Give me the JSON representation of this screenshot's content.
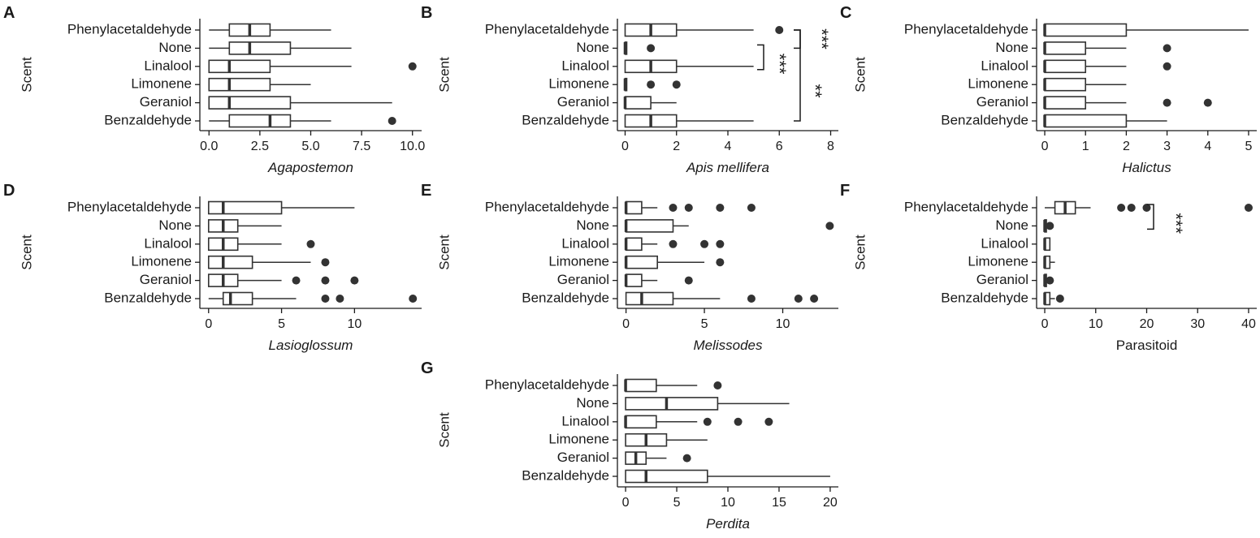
{
  "colors": {
    "box_fill": "#ffffff",
    "line": "#333333",
    "outlier": "#333333",
    "text": "#1a1a1a"
  },
  "chart_data": [
    {
      "panel": "A",
      "type": "box",
      "ylabel": "Scent",
      "xlabel": "Agapostemon",
      "xlabel_italic": true,
      "xlim": [
        -0.45,
        10.45
      ],
      "xticks": [
        0,
        2.5,
        5,
        7.5,
        10
      ],
      "xtick_labels": [
        "0.0",
        "2.5",
        "5.0",
        "7.5",
        "10.0"
      ],
      "categories": [
        {
          "label": "Phenylacetaldehyde",
          "min": 0,
          "q1": 1,
          "median": 2,
          "q3": 3,
          "max": 6,
          "outliers": []
        },
        {
          "label": "None",
          "min": 0,
          "q1": 1,
          "median": 2,
          "q3": 4,
          "max": 7,
          "outliers": []
        },
        {
          "label": "Linalool",
          "min": 0,
          "q1": 0,
          "median": 1,
          "q3": 3,
          "max": 7,
          "outliers": [
            10
          ]
        },
        {
          "label": "Limonene",
          "min": 0,
          "q1": 0,
          "median": 1,
          "q3": 3,
          "max": 5,
          "outliers": []
        },
        {
          "label": "Geraniol",
          "min": 0,
          "q1": 0,
          "median": 1,
          "q3": 4,
          "max": 9,
          "outliers": []
        },
        {
          "label": "Benzaldehyde",
          "min": 0,
          "q1": 1,
          "median": 3,
          "q3": 4,
          "max": 6,
          "outliers": [
            9
          ]
        }
      ],
      "significance": []
    },
    {
      "panel": "B",
      "type": "box",
      "ylabel": "Scent",
      "xlabel": "Apis mellifera",
      "xlabel_italic": true,
      "xlim": [
        -0.3,
        8.3
      ],
      "xticks": [
        0,
        2,
        4,
        6,
        8
      ],
      "xtick_labels": [
        "0",
        "2",
        "4",
        "6",
        "8"
      ],
      "categories": [
        {
          "label": "Phenylacetaldehyde",
          "min": 0,
          "q1": 0,
          "median": 1,
          "q3": 2,
          "max": 5,
          "outliers": [
            6
          ]
        },
        {
          "label": "None",
          "min": 0,
          "q1": 0,
          "median": 0,
          "q3": 0,
          "max": 0,
          "outliers": [
            1
          ]
        },
        {
          "label": "Linalool",
          "min": 0,
          "q1": 0,
          "median": 1,
          "q3": 2,
          "max": 5,
          "outliers": []
        },
        {
          "label": "Limonene",
          "min": 0,
          "q1": 0,
          "median": 0,
          "q3": 0,
          "max": 0,
          "outliers": [
            1,
            2
          ]
        },
        {
          "label": "Geraniol",
          "min": 0,
          "q1": 0,
          "median": 0,
          "q3": 1,
          "max": 2,
          "outliers": []
        },
        {
          "label": "Benzaldehyde",
          "min": 0,
          "q1": 0,
          "median": 1,
          "q3": 2,
          "max": 5,
          "outliers": []
        }
      ],
      "significance": [
        {
          "from": "None",
          "to": "Linalool",
          "label": "***",
          "level": 0
        },
        {
          "from": "Phenylacetaldehyde",
          "to": "None",
          "label": "***",
          "level": 1
        },
        {
          "from": "Phenylacetaldehyde",
          "to": "Benzaldehyde",
          "label": "**",
          "level": 1,
          "label2": "***"
        }
      ]
    },
    {
      "panel": "C",
      "type": "box",
      "ylabel": "Scent",
      "xlabel": "Halictus",
      "xlabel_italic": true,
      "xlim": [
        -0.2,
        5.2
      ],
      "xticks": [
        0,
        1,
        2,
        3,
        4,
        5
      ],
      "xtick_labels": [
        "0",
        "1",
        "2",
        "3",
        "4",
        "5"
      ],
      "categories": [
        {
          "label": "Phenylacetaldehyde",
          "min": 0,
          "q1": 0,
          "median": 0,
          "q3": 2,
          "max": 5,
          "outliers": []
        },
        {
          "label": "None",
          "min": 0,
          "q1": 0,
          "median": 0,
          "q3": 1,
          "max": 2,
          "outliers": [
            3
          ]
        },
        {
          "label": "Linalool",
          "min": 0,
          "q1": 0,
          "median": 0,
          "q3": 1,
          "max": 2,
          "outliers": [
            3
          ]
        },
        {
          "label": "Limonene",
          "min": 0,
          "q1": 0,
          "median": 0,
          "q3": 1,
          "max": 2,
          "outliers": []
        },
        {
          "label": "Geraniol",
          "min": 0,
          "q1": 0,
          "median": 0,
          "q3": 1,
          "max": 2,
          "outliers": [
            3,
            4
          ]
        },
        {
          "label": "Benzaldehyde",
          "min": 0,
          "q1": 0,
          "median": 0,
          "q3": 2,
          "max": 3,
          "outliers": []
        }
      ],
      "significance": []
    },
    {
      "panel": "D",
      "type": "box",
      "ylabel": "Scent",
      "xlabel": "Lasioglossum",
      "xlabel_italic": true,
      "xlim": [
        -0.6,
        14.6
      ],
      "xticks": [
        0,
        5,
        10
      ],
      "xtick_labels": [
        "0",
        "5",
        "10"
      ],
      "categories": [
        {
          "label": "Phenylacetaldehyde",
          "min": 0,
          "q1": 0,
          "median": 1,
          "q3": 5,
          "max": 10,
          "outliers": []
        },
        {
          "label": "None",
          "min": 0,
          "q1": 0,
          "median": 1,
          "q3": 2,
          "max": 5,
          "outliers": []
        },
        {
          "label": "Linalool",
          "min": 0,
          "q1": 0,
          "median": 1,
          "q3": 2,
          "max": 5,
          "outliers": [
            7
          ]
        },
        {
          "label": "Limonene",
          "min": 0,
          "q1": 0,
          "median": 1,
          "q3": 3,
          "max": 7,
          "outliers": [
            8
          ]
        },
        {
          "label": "Geraniol",
          "min": 0,
          "q1": 0,
          "median": 1,
          "q3": 2,
          "max": 5,
          "outliers": [
            6,
            8,
            10
          ]
        },
        {
          "label": "Benzaldehyde",
          "min": 0,
          "q1": 1,
          "median": 1.5,
          "q3": 3,
          "max": 6,
          "outliers": [
            8,
            9,
            14
          ]
        }
      ],
      "significance": []
    },
    {
      "panel": "E",
      "type": "box",
      "ylabel": "Scent",
      "xlabel": "Melissodes",
      "xlabel_italic": true,
      "xlim": [
        -0.55,
        13.55
      ],
      "xticks": [
        0,
        5,
        10
      ],
      "xtick_labels": [
        "0",
        "5",
        "10"
      ],
      "categories": [
        {
          "label": "Phenylacetaldehyde",
          "min": 0,
          "q1": 0,
          "median": 0,
          "q3": 1,
          "max": 2,
          "outliers": [
            3,
            4,
            6,
            8
          ]
        },
        {
          "label": "None",
          "min": 0,
          "q1": 0,
          "median": 0,
          "q3": 3,
          "max": 4,
          "outliers": [
            13
          ]
        },
        {
          "label": "Linalool",
          "min": 0,
          "q1": 0,
          "median": 0,
          "q3": 1,
          "max": 2,
          "outliers": [
            3,
            5,
            6
          ]
        },
        {
          "label": "Limonene",
          "min": 0,
          "q1": 0,
          "median": 0,
          "q3": 2,
          "max": 5,
          "outliers": [
            6
          ]
        },
        {
          "label": "Geraniol",
          "min": 0,
          "q1": 0,
          "median": 0,
          "q3": 1,
          "max": 2,
          "outliers": [
            4
          ]
        },
        {
          "label": "Benzaldehyde",
          "min": 0,
          "q1": 0,
          "median": 1,
          "q3": 3,
          "max": 6,
          "outliers": [
            8,
            11,
            12
          ]
        }
      ],
      "significance": []
    },
    {
      "panel": "F",
      "type": "box",
      "ylabel": "Scent",
      "xlabel": "Parasitoid",
      "xlabel_italic": false,
      "xlim": [
        -1.6,
        41.6
      ],
      "xticks": [
        0,
        10,
        20,
        30,
        40
      ],
      "xtick_labels": [
        "0",
        "10",
        "20",
        "30",
        "40"
      ],
      "categories": [
        {
          "label": "Phenylacetaldehyde",
          "min": 0,
          "q1": 2,
          "median": 4,
          "q3": 6,
          "max": 9,
          "outliers": [
            15,
            17,
            20,
            40
          ]
        },
        {
          "label": "None",
          "min": 0,
          "q1": 0,
          "median": 0,
          "q3": 0,
          "max": 0,
          "outliers": [
            1
          ]
        },
        {
          "label": "Linalool",
          "min": 0,
          "q1": 0,
          "median": 0,
          "q3": 1,
          "max": 1,
          "outliers": []
        },
        {
          "label": "Limonene",
          "min": 0,
          "q1": 0,
          "median": 0,
          "q3": 1,
          "max": 2,
          "outliers": []
        },
        {
          "label": "Geraniol",
          "min": 0,
          "q1": 0,
          "median": 0,
          "q3": 0,
          "max": 0,
          "outliers": [
            1
          ]
        },
        {
          "label": "Benzaldehyde",
          "min": 0,
          "q1": 0,
          "median": 0,
          "q3": 1,
          "max": 2,
          "outliers": [
            3
          ]
        }
      ],
      "significance": [
        {
          "from": "Phenylacetaldehyde",
          "to": "None",
          "label": "***",
          "level": 0
        }
      ]
    },
    {
      "panel": "G",
      "type": "box",
      "ylabel": "Scent",
      "xlabel": "Perdita",
      "xlabel_italic": true,
      "xlim": [
        -0.8,
        20.8
      ],
      "xticks": [
        0,
        5,
        10,
        15,
        20
      ],
      "xtick_labels": [
        "0",
        "5",
        "10",
        "15",
        "20"
      ],
      "categories": [
        {
          "label": "Phenylacetaldehyde",
          "min": 0,
          "q1": 0,
          "median": 0,
          "q3": 3,
          "max": 7,
          "outliers": [
            9
          ]
        },
        {
          "label": "None",
          "min": 0,
          "q1": 0,
          "median": 4,
          "q3": 9,
          "max": 16,
          "outliers": []
        },
        {
          "label": "Linalool",
          "min": 0,
          "q1": 0,
          "median": 0,
          "q3": 3,
          "max": 7,
          "outliers": [
            8,
            11,
            14
          ]
        },
        {
          "label": "Limonene",
          "min": 0,
          "q1": 0,
          "median": 2,
          "q3": 4,
          "max": 8,
          "outliers": []
        },
        {
          "label": "Geraniol",
          "min": 0,
          "q1": 0,
          "median": 1,
          "q3": 2,
          "max": 4,
          "outliers": [
            6
          ]
        },
        {
          "label": "Benzaldehyde",
          "min": 0,
          "q1": 0,
          "median": 2,
          "q3": 8,
          "max": 20,
          "outliers": []
        }
      ],
      "significance": []
    }
  ]
}
